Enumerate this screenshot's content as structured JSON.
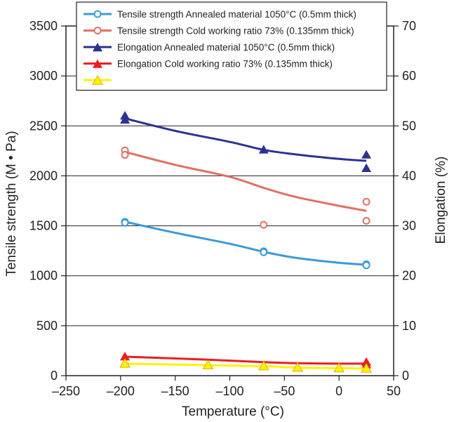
{
  "chart_data": {
    "type": "scatter",
    "xlabel": "Temperature (°C)",
    "ylabel_left": "Tensile strength (M • Pa)",
    "ylabel_right": "Elongation (%)",
    "xlim": [
      -250,
      50
    ],
    "ylim_left": [
      0,
      3500
    ],
    "ylim_right": [
      0,
      70
    ],
    "x_ticks": [
      "–250",
      "–200",
      "–150",
      "–100",
      "–50",
      "0",
      "50"
    ],
    "y_left_ticks": [
      "0",
      "500",
      "1000",
      "1500",
      "2000",
      "2500",
      "3000",
      "3500"
    ],
    "y_right_ticks": [
      "0",
      "10",
      "20",
      "30",
      "40",
      "50",
      "60",
      "70"
    ],
    "grid": "horizontal",
    "legend_position": "top",
    "series": [
      {
        "name": "Tensile strength  Annealed material 1050°C (0.5mm thick)",
        "axis": "left",
        "color": "#3a9ad9",
        "marker": "circle",
        "points": [
          [
            -196,
            1540
          ],
          [
            -196,
            1530
          ],
          [
            -69,
            1245
          ],
          [
            -69,
            1235
          ],
          [
            25,
            1115
          ],
          [
            25,
            1105
          ]
        ],
        "curve": [
          [
            -196,
            1540
          ],
          [
            -150,
            1430
          ],
          [
            -100,
            1320
          ],
          [
            -69,
            1240
          ],
          [
            -40,
            1180
          ],
          [
            0,
            1130
          ],
          [
            25,
            1110
          ]
        ]
      },
      {
        "name": "Tensile strength Cold working ratio 73% (0.135mm thick)",
        "axis": "left",
        "color": "#e07163",
        "marker": "circle",
        "points": [
          [
            -196,
            2255
          ],
          [
            -196,
            2210
          ],
          [
            -69,
            1510
          ],
          [
            25,
            1740
          ],
          [
            25,
            1550
          ]
        ],
        "curve": [
          [
            -196,
            2240
          ],
          [
            -150,
            2110
          ],
          [
            -100,
            1990
          ],
          [
            -69,
            1880
          ],
          [
            -40,
            1790
          ],
          [
            0,
            1700
          ],
          [
            25,
            1650
          ]
        ]
      },
      {
        "name": "Elongation Annealed material 1050°C (0.5mm thick)",
        "axis": "right",
        "color": "#2e3192",
        "marker": "triangle",
        "points": [
          [
            -196,
            52
          ],
          [
            -196,
            51.2
          ],
          [
            -69,
            45.2
          ],
          [
            25,
            44.2
          ],
          [
            25,
            41.5
          ]
        ],
        "curve": [
          [
            -196,
            51.5
          ],
          [
            -150,
            49
          ],
          [
            -100,
            46.8
          ],
          [
            -69,
            45.2
          ],
          [
            -40,
            44.3
          ],
          [
            0,
            43.4
          ],
          [
            25,
            43
          ]
        ]
      },
      {
        "name": "Elongation  Cold working ratio 73% (0.135mm thick)",
        "axis": "right",
        "color": "#ed1c24",
        "marker": "triangle",
        "points": [
          [
            -196,
            3.8
          ],
          [
            -69,
            1.9
          ],
          [
            25,
            2.7
          ],
          [
            25,
            2.2
          ]
        ],
        "curve": [
          [
            -196,
            3.8
          ],
          [
            -120,
            3.2
          ],
          [
            -69,
            2.7
          ],
          [
            -40,
            2.5
          ],
          [
            0,
            2.4
          ],
          [
            25,
            2.4
          ]
        ]
      },
      {
        "name": "",
        "axis": "right",
        "color": "#fff200",
        "marker": "triangle",
        "points": [
          [
            -196,
            2.4
          ],
          [
            -120,
            2.1
          ],
          [
            -69,
            1.9
          ],
          [
            -38,
            1.6
          ],
          [
            0,
            1.5
          ],
          [
            25,
            1.4
          ]
        ],
        "curve": [
          [
            -196,
            2.4
          ],
          [
            -120,
            2.1
          ],
          [
            -69,
            1.9
          ],
          [
            -38,
            1.6
          ],
          [
            0,
            1.5
          ],
          [
            25,
            1.4
          ]
        ]
      }
    ]
  }
}
